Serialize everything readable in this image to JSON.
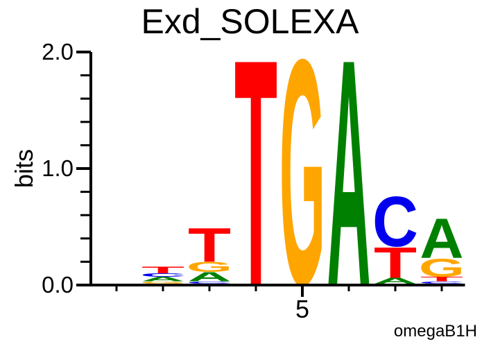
{
  "chart_data": {
    "type": "bar",
    "subtype": "sequence-logo",
    "title": "Exd_SOLEXA",
    "ylabel": "bits",
    "xlabel": "",
    "footnote": "omegaB1H",
    "ylim": [
      0,
      2.0
    ],
    "y_major_ticks": [
      {
        "value": 0.0,
        "label": "0.0"
      },
      {
        "value": 1.0,
        "label": "1.0"
      },
      {
        "value": 2.0,
        "label": "2.0"
      }
    ],
    "y_minor_tick_step": 0.2,
    "x_positions": [
      1,
      2,
      3,
      4,
      5,
      6,
      7,
      8
    ],
    "x_labeled_position": 5,
    "x_tick_label": "5",
    "grid": false,
    "legend_position": "none",
    "letter_colors": {
      "A": "#008000",
      "C": "#0000EE",
      "G": "#FFA500",
      "T": "#FF0000"
    },
    "positions": [
      {
        "index": 1,
        "stack": []
      },
      {
        "index": 2,
        "stack": [
          {
            "letter": "G",
            "bits": 0.02
          },
          {
            "letter": "A",
            "bits": 0.04
          },
          {
            "letter": "C",
            "bits": 0.03
          },
          {
            "letter": "T",
            "bits": 0.06
          }
        ]
      },
      {
        "index": 3,
        "stack": [
          {
            "letter": "C",
            "bits": 0.02
          },
          {
            "letter": "A",
            "bits": 0.08
          },
          {
            "letter": "G",
            "bits": 0.09
          },
          {
            "letter": "T",
            "bits": 0.3
          }
        ]
      },
      {
        "index": 4,
        "stack": [
          {
            "letter": "T",
            "bits": 1.99
          }
        ]
      },
      {
        "index": 5,
        "stack": [
          {
            "letter": "G",
            "bits": 1.99
          }
        ]
      },
      {
        "index": 6,
        "stack": [
          {
            "letter": "A",
            "bits": 1.99
          }
        ]
      },
      {
        "index": 7,
        "stack": [
          {
            "letter": "A",
            "bits": 0.05
          },
          {
            "letter": "T",
            "bits": 0.27
          },
          {
            "letter": "C",
            "bits": 0.44
          }
        ]
      },
      {
        "index": 8,
        "stack": [
          {
            "letter": "C",
            "bits": 0.02
          },
          {
            "letter": "T",
            "bits": 0.04
          },
          {
            "letter": "G",
            "bits": 0.16
          },
          {
            "letter": "A",
            "bits": 0.35
          }
        ]
      }
    ]
  }
}
